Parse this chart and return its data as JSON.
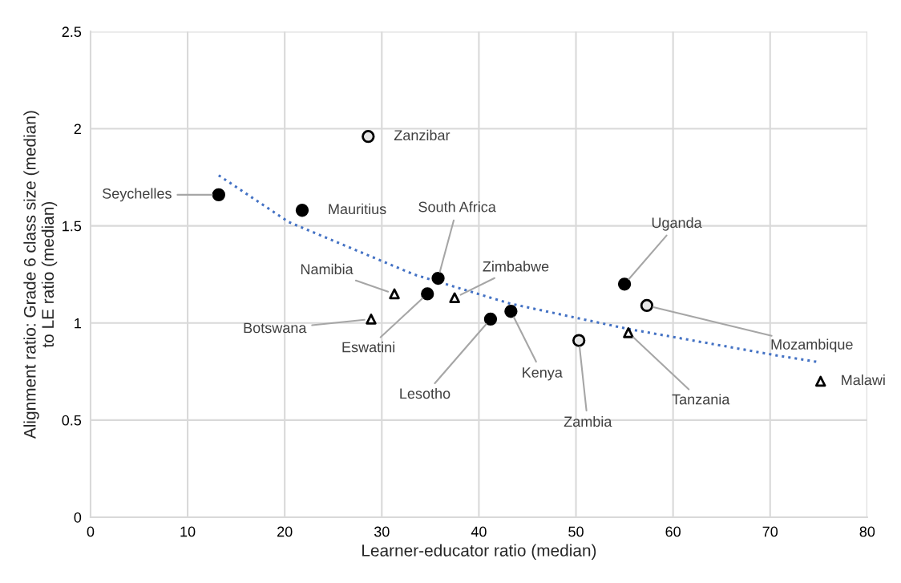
{
  "chart_data": {
    "type": "scatter",
    "xlabel": "Learner-educator ratio (median)",
    "ylabel": "Alignment ratio: Grade 6 class size (median)\nto LE ratio (median)",
    "xlim": [
      0,
      80
    ],
    "xticks": [
      0,
      10,
      20,
      30,
      40,
      50,
      60,
      70,
      80
    ],
    "ylim": [
      0,
      2.5
    ],
    "yticks": [
      0,
      0.5,
      1,
      1.5,
      2,
      2.5
    ],
    "grid": true,
    "legend": false,
    "series": [
      {
        "marker": "circle",
        "color": "#000000",
        "x": [
          13.2,
          21.8,
          35.8,
          34.7,
          41.2,
          43.3,
          55.0
        ],
        "values": [
          1.66,
          1.58,
          1.23,
          1.15,
          1.02,
          1.06,
          1.2
        ]
      },
      {
        "marker": "circle",
        "color": "#e6e6e6",
        "x": [
          28.6,
          50.3,
          57.3
        ],
        "values": [
          1.96,
          0.91,
          1.09
        ]
      },
      {
        "marker": "triangle",
        "color": "#ffffff",
        "x": [
          31.3,
          28.9,
          37.5,
          55.4,
          75.2
        ],
        "values": [
          1.15,
          1.02,
          1.13,
          0.95,
          0.7
        ]
      },
      {
        "type": "line",
        "marker": "none",
        "line_style": "dotted",
        "color": "#4472c4",
        "x": [
          13.2,
          20.4,
          33.3,
          43.2,
          55.3,
          71.0,
          74.8
        ],
        "values": [
          1.76,
          1.52,
          1.25,
          1.1,
          0.97,
          0.83,
          0.8
        ]
      }
    ],
    "annotations": [
      {
        "text": "Seychelles",
        "x": 13.2,
        "y": 1.66
      },
      {
        "text": "Mauritius",
        "x": 21.8,
        "y": 1.58
      },
      {
        "text": "Zanzibar",
        "x": 28.6,
        "y": 1.96
      },
      {
        "text": "South Africa",
        "x": 35.8,
        "y": 1.23
      },
      {
        "text": "Namibia",
        "x": 31.3,
        "y": 1.15
      },
      {
        "text": "Botswana",
        "x": 28.9,
        "y": 1.02
      },
      {
        "text": "Eswatini",
        "x": 34.7,
        "y": 1.15
      },
      {
        "text": "Zimbabwe",
        "x": 37.5,
        "y": 1.13
      },
      {
        "text": "Lesotho",
        "x": 41.2,
        "y": 1.02
      },
      {
        "text": "Kenya",
        "x": 43.3,
        "y": 1.06
      },
      {
        "text": "Zambia",
        "x": 50.3,
        "y": 0.91
      },
      {
        "text": "Uganda",
        "x": 55.0,
        "y": 1.2
      },
      {
        "text": "Mozambique",
        "x": 57.3,
        "y": 1.09
      },
      {
        "text": "Tanzania",
        "x": 55.4,
        "y": 0.95
      },
      {
        "text": "Malawi",
        "x": 75.2,
        "y": 0.7
      }
    ]
  }
}
